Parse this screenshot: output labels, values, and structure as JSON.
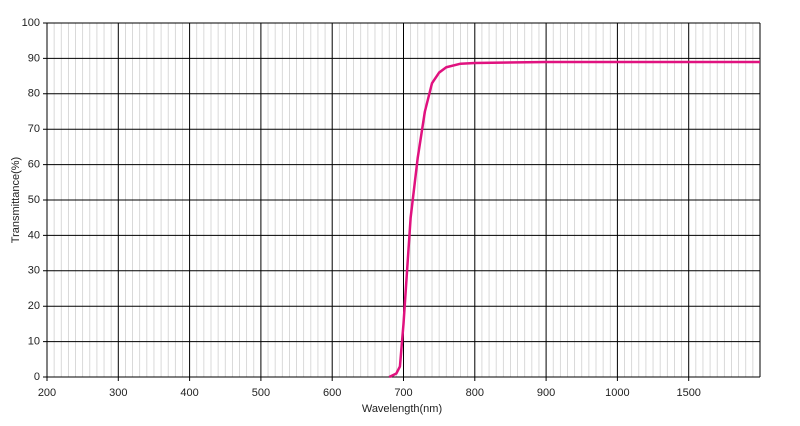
{
  "chart_data": {
    "type": "line",
    "x_label": "Wavelength(nm)",
    "y_label": "Transmittance(%)",
    "x": [
      680,
      690,
      695,
      700,
      705,
      710,
      720,
      730,
      740,
      750,
      760,
      780,
      800,
      900,
      1000,
      1500,
      2000
    ],
    "values": [
      0,
      1,
      3,
      15,
      30,
      45,
      62,
      75,
      83,
      86,
      87.5,
      88.5,
      88.7,
      89,
      89,
      89,
      89
    ],
    "color": "#e0127f",
    "xlim": [
      200,
      2000
    ],
    "xticks": [
      200,
      300,
      400,
      500,
      600,
      700,
      800,
      900,
      1000,
      1500
    ],
    "ylim": [
      0,
      100
    ],
    "yticks": [
      0,
      10,
      20,
      30,
      40,
      50,
      60,
      70,
      80,
      90,
      100
    ],
    "grid": true,
    "minor_grid": true
  }
}
